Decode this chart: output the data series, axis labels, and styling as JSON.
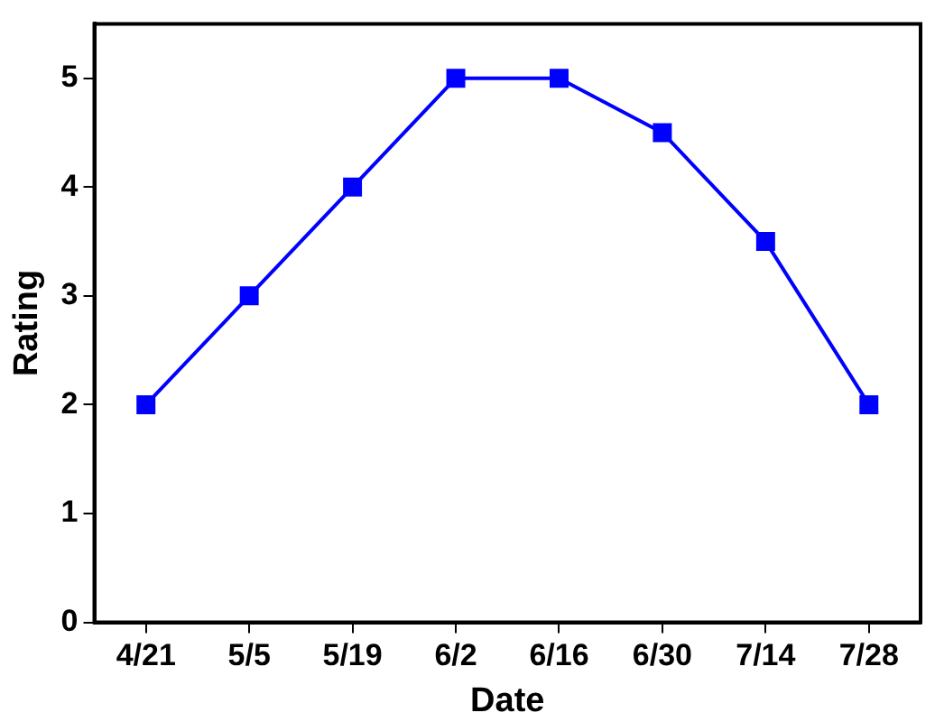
{
  "chart_data": {
    "type": "line",
    "xlabel": "Date",
    "ylabel": "Rating",
    "categories": [
      "4/21",
      "5/5",
      "5/19",
      "6/2",
      "6/16",
      "6/30",
      "7/14",
      "7/28"
    ],
    "series": [
      {
        "color": "#0000ff",
        "values": [
          2,
          3,
          4,
          5,
          5,
          4.5,
          3.5,
          2
        ]
      }
    ],
    "ylim": [
      0,
      5.5
    ],
    "yticks": [
      0,
      1,
      2,
      3,
      4,
      5
    ],
    "grid": false,
    "legend": false,
    "marker": "square",
    "line_style": "solid"
  }
}
